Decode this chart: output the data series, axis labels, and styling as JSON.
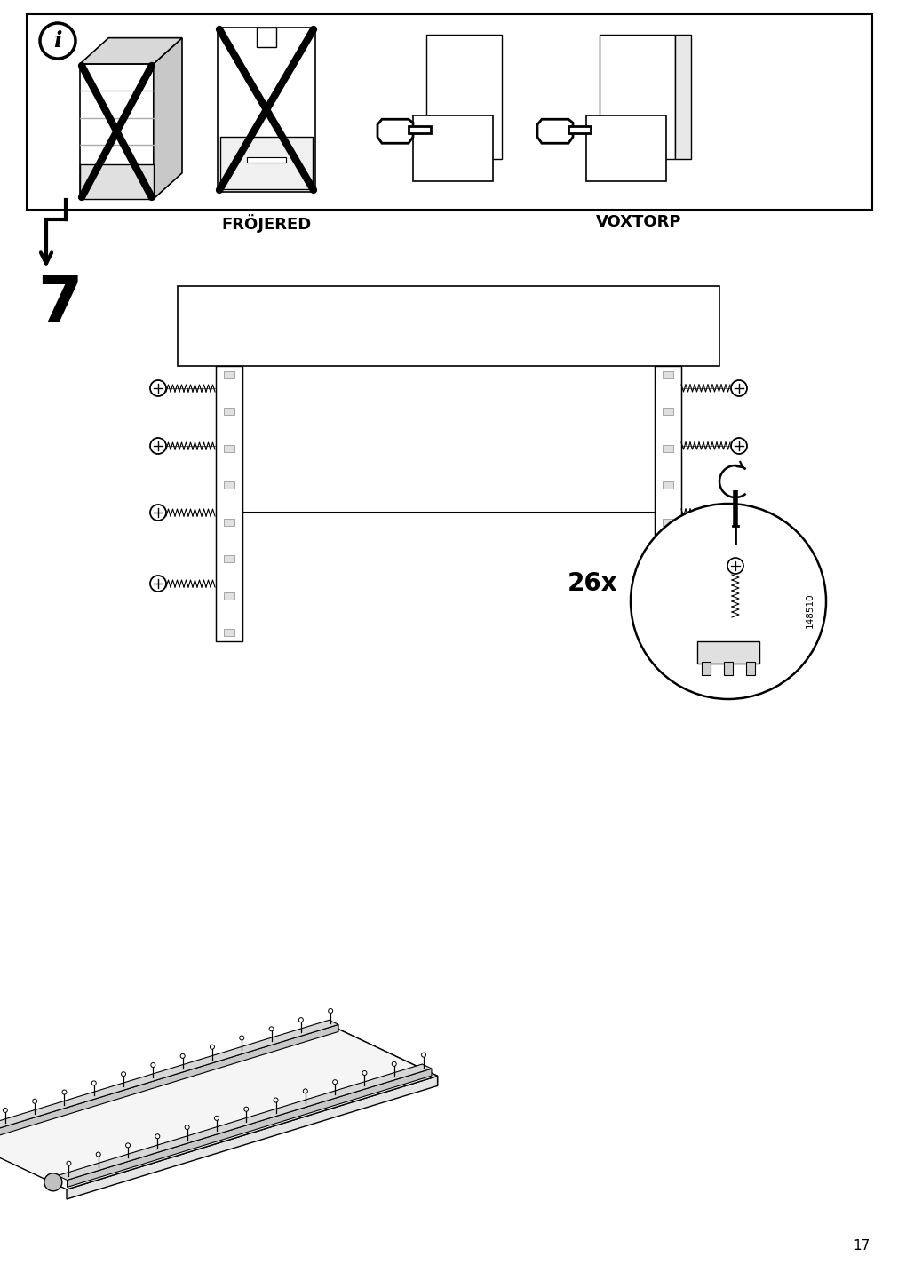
{
  "page_number": "17",
  "bg": "#ffffff",
  "lc": "#000000",
  "step_number": "7",
  "label_frojered": "FRÖJERED",
  "label_voxtorp": "VOXTORP",
  "quantity_label": "26x",
  "part_number": "148510"
}
